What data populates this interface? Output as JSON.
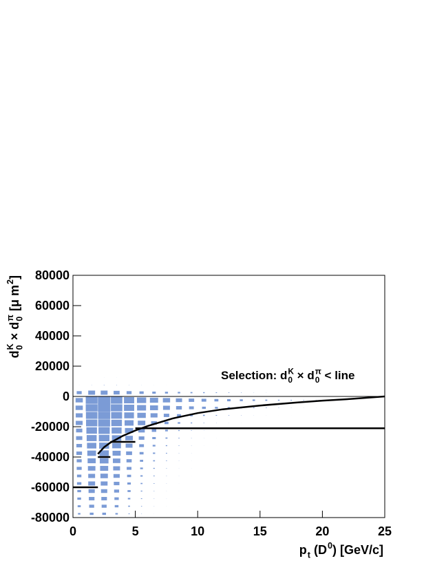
{
  "chart_data": {
    "type": "box2d",
    "annotation_parts": [
      {
        "text": "Selection: d",
        "sub": "0",
        "sup": "K"
      },
      {
        "text": " × d",
        "sub": "0",
        "sup": "π"
      },
      {
        "text": " < line"
      }
    ],
    "xlabel_parts": [
      {
        "text": "p",
        "sub": "t"
      },
      {
        "text": " (D",
        "sup": "0"
      },
      {
        "text": ") [GeV/c]"
      }
    ],
    "ylabel_parts": [
      {
        "text": "d",
        "sub": "0",
        "sup": "K"
      },
      {
        "text": " × d",
        "sub": "0",
        "sup": "π"
      },
      {
        "text": " [μ m",
        "sup": "2"
      },
      {
        "text": "]"
      }
    ],
    "xlim": [
      0,
      25
    ],
    "xticks": [
      0,
      5,
      10,
      15,
      20,
      25
    ],
    "ylim": [
      -80000,
      80000
    ],
    "yticks": [
      -80000,
      -60000,
      -40000,
      -20000,
      0,
      20000,
      40000,
      60000,
      80000
    ],
    "box_color": "#7b9bd6",
    "xbins": [
      0,
      1,
      2,
      3,
      4,
      5,
      6,
      7,
      8,
      9,
      10,
      11,
      12,
      13,
      14,
      15,
      16,
      17,
      18,
      19,
      20,
      21,
      22,
      23,
      24,
      25
    ],
    "ybins": [
      -80000,
      -75000,
      -70000,
      -65000,
      -60000,
      -55000,
      -50000,
      -45000,
      -40000,
      -35000,
      -30000,
      -25000,
      -20000,
      -15000,
      -10000,
      -5000,
      0,
      5000,
      10000,
      15000
    ],
    "zmax": 100,
    "z": [
      [
        20,
        30,
        30,
        20,
        10,
        5,
        2,
        1,
        0,
        0,
        0,
        0,
        0,
        0,
        0,
        0,
        0,
        0,
        0,
        0,
        0,
        0,
        0,
        0,
        0
      ],
      [
        25,
        40,
        40,
        30,
        15,
        8,
        4,
        2,
        1,
        0,
        0,
        0,
        0,
        0,
        0,
        0,
        0,
        0,
        0,
        0,
        0,
        0,
        0,
        0,
        0
      ],
      [
        30,
        45,
        45,
        35,
        20,
        10,
        5,
        3,
        1,
        0,
        0,
        0,
        0,
        0,
        0,
        0,
        0,
        0,
        0,
        0,
        0,
        0,
        0,
        0,
        0
      ],
      [
        30,
        50,
        50,
        40,
        25,
        12,
        6,
        3,
        2,
        1,
        0,
        0,
        0,
        0,
        0,
        0,
        0,
        0,
        0,
        0,
        0,
        0,
        0,
        0,
        0
      ],
      [
        35,
        55,
        55,
        45,
        28,
        15,
        8,
        4,
        2,
        1,
        0,
        0,
        0,
        0,
        0,
        0,
        0,
        0,
        0,
        0,
        0,
        0,
        0,
        0,
        0
      ],
      [
        35,
        55,
        60,
        50,
        32,
        18,
        10,
        5,
        3,
        1,
        0,
        0,
        0,
        0,
        0,
        0,
        0,
        0,
        0,
        0,
        0,
        0,
        0,
        0,
        0
      ],
      [
        40,
        60,
        65,
        55,
        38,
        22,
        12,
        6,
        3,
        2,
        1,
        0,
        0,
        0,
        0,
        0,
        0,
        0,
        0,
        0,
        0,
        0,
        0,
        0,
        0
      ],
      [
        40,
        65,
        70,
        60,
        42,
        26,
        15,
        8,
        4,
        2,
        1,
        0,
        0,
        0,
        0,
        0,
        0,
        0,
        0,
        0,
        0,
        0,
        0,
        0,
        0
      ],
      [
        45,
        70,
        75,
        65,
        48,
        32,
        18,
        10,
        5,
        3,
        1,
        0,
        0,
        0,
        0,
        0,
        0,
        0,
        0,
        0,
        0,
        0,
        0,
        0,
        0
      ],
      [
        45,
        75,
        80,
        70,
        55,
        38,
        22,
        12,
        7,
        4,
        2,
        1,
        0,
        0,
        0,
        0,
        0,
        0,
        0,
        0,
        0,
        0,
        0,
        0,
        0
      ],
      [
        50,
        80,
        85,
        75,
        60,
        45,
        28,
        16,
        9,
        5,
        3,
        2,
        1,
        0,
        0,
        0,
        0,
        0,
        0,
        0,
        0,
        0,
        0,
        0,
        0
      ],
      [
        50,
        85,
        90,
        80,
        66,
        52,
        36,
        22,
        12,
        7,
        4,
        2,
        1,
        1,
        0,
        0,
        0,
        0,
        0,
        0,
        0,
        0,
        0,
        0,
        0
      ],
      [
        55,
        90,
        95,
        85,
        72,
        60,
        46,
        32,
        20,
        12,
        7,
        4,
        3,
        2,
        1,
        0,
        0,
        0,
        0,
        0,
        0,
        0,
        0,
        0,
        0
      ],
      [
        55,
        92,
        97,
        88,
        78,
        68,
        56,
        44,
        32,
        22,
        15,
        10,
        7,
        5,
        3,
        2,
        1,
        1,
        0,
        0,
        0,
        0,
        0,
        0,
        0
      ],
      [
        58,
        95,
        100,
        92,
        82,
        72,
        64,
        55,
        46,
        38,
        30,
        24,
        18,
        14,
        10,
        8,
        6,
        4,
        3,
        2,
        1,
        1,
        0,
        0,
        0
      ],
      [
        58,
        95,
        100,
        92,
        82,
        74,
        66,
        58,
        50,
        44,
        38,
        32,
        28,
        24,
        20,
        16,
        13,
        10,
        8,
        6,
        4,
        3,
        2,
        1,
        1
      ],
      [
        40,
        55,
        55,
        48,
        40,
        34,
        28,
        24,
        20,
        16,
        13,
        10,
        8,
        6,
        4,
        3,
        2,
        1,
        1,
        0,
        0,
        0,
        0,
        0,
        0
      ],
      [
        2,
        4,
        6,
        5,
        4,
        3,
        2,
        1,
        1,
        0,
        0,
        0,
        0,
        0,
        0,
        0,
        0,
        0,
        0,
        0,
        0,
        0,
        0,
        0,
        0
      ],
      [
        0,
        1,
        2,
        2,
        1,
        1,
        0,
        0,
        0,
        0,
        0,
        0,
        0,
        0,
        0,
        0,
        0,
        0,
        0,
        0,
        0,
        0,
        0,
        0,
        0
      ]
    ],
    "curve": {
      "color": "#000000",
      "x": [
        2,
        2.5,
        3,
        4,
        5,
        6,
        8,
        10,
        12,
        15,
        18,
        20,
        22,
        25
      ],
      "values": [
        -38000,
        -33500,
        -30500,
        -26000,
        -22500,
        -19500,
        -14500,
        -11000,
        -8500,
        -6000,
        -4000,
        -2800,
        -1800,
        0
      ]
    },
    "steps": {
      "color": "#000000",
      "edges": [
        0,
        2,
        3,
        5,
        25
      ],
      "values": [
        -60000,
        -40000,
        -30000,
        -21000
      ]
    }
  }
}
